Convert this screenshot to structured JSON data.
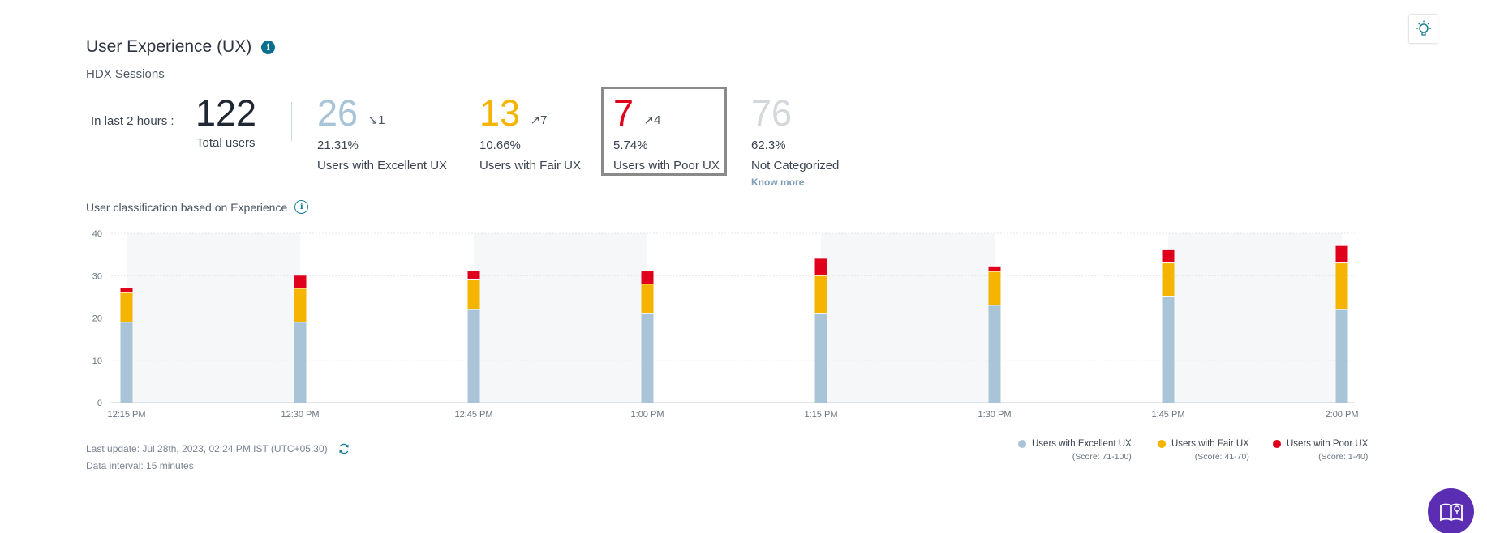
{
  "header": {
    "title": "User Experience (UX)",
    "info_icon": "info-icon",
    "subtitle": "HDX Sessions",
    "insights_icon": "lightbulb-icon"
  },
  "summary": {
    "period_label": "In last 2 hours :",
    "total": {
      "value": "122",
      "label": "Total users"
    },
    "excellent": {
      "value": "26",
      "delta": "1",
      "delta_direction": "down",
      "percent": "21.31%",
      "label": "Users with Excellent UX",
      "color": "#a8c4d6"
    },
    "fair": {
      "value": "13",
      "delta": "7",
      "delta_direction": "up",
      "percent": "10.66%",
      "label": "Users with Fair UX",
      "color": "#f5b400"
    },
    "poor": {
      "value": "7",
      "delta": "4",
      "delta_direction": "up",
      "percent": "5.74%",
      "label": "Users with Poor UX",
      "color": "#e0001b"
    },
    "not_categorized": {
      "value": "76",
      "percent": "62.3%",
      "label": "Not Categorized",
      "link": "Know more",
      "color": "#d4d8dc"
    }
  },
  "chart_section": {
    "title": "User classification based on Experience"
  },
  "chart_data": {
    "type": "bar",
    "stacked": true,
    "categories": [
      "12:15 PM",
      "12:30 PM",
      "12:45 PM",
      "1:00 PM",
      "1:15 PM",
      "1:30 PM",
      "1:45 PM",
      "2:00 PM"
    ],
    "series": [
      {
        "name": "Users with Excellent UX",
        "color": "#a8c4d6",
        "values": [
          19,
          19,
          22,
          21,
          21,
          23,
          25,
          22
        ]
      },
      {
        "name": "Users with Fair UX",
        "color": "#f5b400",
        "values": [
          7,
          8,
          7,
          7,
          9,
          8,
          8,
          11
        ]
      },
      {
        "name": "Users with Poor UX",
        "color": "#e0001b",
        "values": [
          1,
          3,
          2,
          3,
          4,
          1,
          3,
          4
        ]
      }
    ],
    "yticks": [
      "0",
      "10",
      "20",
      "30",
      "40"
    ],
    "ylim": [
      0,
      40
    ],
    "grid": true,
    "legend_position": "bottom-right"
  },
  "legend": [
    {
      "label": "Users with Excellent UX",
      "score": "(Score: 71-100)",
      "color": "#a8c4d6"
    },
    {
      "label": "Users with Fair UX",
      "score": "(Score: 41-70)",
      "color": "#f5b400"
    },
    {
      "label": "Users with Poor UX",
      "score": "(Score: 1-40)",
      "color": "#e0001b"
    }
  ],
  "footer": {
    "last_update": "Last update: Jul 28th, 2023, 02:24 PM IST (UTC+05:30)",
    "interval": "Data interval: 15 minutes",
    "refresh_icon": "refresh-icon"
  },
  "help_icon": "help-book-icon"
}
